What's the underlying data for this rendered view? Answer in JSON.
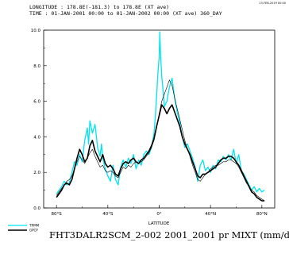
{
  "header": {
    "longitude_line": "LONGITUDE : 178.8E(-181.3) to 178.8E (XT ave)",
    "time_line": "TIME : 01-JAN-2001 00:00 to 01-JAN-2002 00:00 (XT ave) 360_DAY",
    "stamp": "13-FEB-2019 00:00"
  },
  "footer": {
    "title": "FHT3DALR2SCM_2-002 2001_2001 pr MIXT (mm/d)"
  },
  "chart_data": {
    "type": "line",
    "xlabel": "LATITUDE",
    "xlim": [
      -90,
      90
    ],
    "ylim": [
      0,
      10
    ],
    "y_ticks": [
      0,
      2,
      4,
      6,
      8,
      10
    ],
    "y_tick_labels": [
      "0.0",
      "2.0",
      "4.0",
      "6.0",
      "8.0",
      "10.0"
    ],
    "x_ticks": [
      -80,
      -40,
      0,
      40,
      80
    ],
    "x_tick_labels": [
      "80°S",
      "40°S",
      "0°",
      "40°N",
      "80°N"
    ],
    "legend_placement": "bottom-left",
    "series": [
      {
        "name": "TRMM",
        "color": "#00e5ee",
        "width": 1.3,
        "points": [
          [
            -80,
            0.8
          ],
          [
            -78,
            1.0
          ],
          [
            -76,
            1.2
          ],
          [
            -74,
            1.5
          ],
          [
            -72,
            1.3
          ],
          [
            -70,
            1.4
          ],
          [
            -68,
            2.0
          ],
          [
            -66,
            2.6
          ],
          [
            -64,
            2.4
          ],
          [
            -62,
            3.0
          ],
          [
            -60,
            2.6
          ],
          [
            -58,
            3.8
          ],
          [
            -56,
            4.5
          ],
          [
            -55,
            3.6
          ],
          [
            -54,
            4.9
          ],
          [
            -52,
            4.2
          ],
          [
            -50,
            4.7
          ],
          [
            -48,
            3.4
          ],
          [
            -46,
            2.9
          ],
          [
            -45,
            3.6
          ],
          [
            -44,
            2.8
          ],
          [
            -42,
            2.2
          ],
          [
            -40,
            1.8
          ],
          [
            -38,
            1.5
          ],
          [
            -36,
            2.4
          ],
          [
            -34,
            1.6
          ],
          [
            -32,
            1.3
          ],
          [
            -30,
            2.3
          ],
          [
            -28,
            2.7
          ],
          [
            -26,
            2.3
          ],
          [
            -24,
            2.8
          ],
          [
            -22,
            2.5
          ],
          [
            -20,
            3.0
          ],
          [
            -18,
            2.2
          ],
          [
            -16,
            2.7
          ],
          [
            -14,
            2.4
          ],
          [
            -12,
            3.0
          ],
          [
            -10,
            3.2
          ],
          [
            -8,
            3.0
          ],
          [
            -6,
            3.4
          ],
          [
            -4,
            4.2
          ],
          [
            -3,
            5.2
          ],
          [
            -2,
            6.3
          ],
          [
            -1,
            7.6
          ],
          [
            0,
            8.5
          ],
          [
            0.5,
            9.9
          ],
          [
            1,
            8.8
          ],
          [
            2,
            7.4
          ],
          [
            3,
            6.6
          ],
          [
            4,
            5.7
          ],
          [
            6,
            6.0
          ],
          [
            8,
            6.8
          ],
          [
            10,
            7.3
          ],
          [
            12,
            6.2
          ],
          [
            14,
            5.4
          ],
          [
            16,
            4.8
          ],
          [
            18,
            4.0
          ],
          [
            20,
            3.4
          ],
          [
            22,
            3.6
          ],
          [
            24,
            3.2
          ],
          [
            26,
            2.8
          ],
          [
            28,
            2.3
          ],
          [
            30,
            1.5
          ],
          [
            32,
            2.4
          ],
          [
            34,
            2.7
          ],
          [
            36,
            2.1
          ],
          [
            38,
            2.3
          ],
          [
            40,
            2.0
          ],
          [
            42,
            2.4
          ],
          [
            44,
            2.2
          ],
          [
            46,
            2.7
          ],
          [
            48,
            2.6
          ],
          [
            50,
            2.9
          ],
          [
            52,
            2.7
          ],
          [
            54,
            3.0
          ],
          [
            56,
            2.7
          ],
          [
            58,
            3.3
          ],
          [
            60,
            2.5
          ],
          [
            62,
            3.0
          ],
          [
            64,
            2.1
          ],
          [
            66,
            1.9
          ],
          [
            68,
            1.6
          ],
          [
            70,
            1.3
          ],
          [
            72,
            1.0
          ],
          [
            74,
            1.2
          ],
          [
            76,
            0.9
          ],
          [
            78,
            1.1
          ],
          [
            80,
            0.9
          ],
          [
            82,
            1.0
          ]
        ]
      },
      {
        "name": "GPCP",
        "color": "#000000",
        "width": 1.6,
        "points": [
          [
            -80,
            0.6
          ],
          [
            -78,
            0.8
          ],
          [
            -76,
            1.0
          ],
          [
            -74,
            1.3
          ],
          [
            -72,
            1.4
          ],
          [
            -70,
            1.3
          ],
          [
            -68,
            1.6
          ],
          [
            -66,
            2.2
          ],
          [
            -64,
            2.8
          ],
          [
            -62,
            3.3
          ],
          [
            -60,
            3.0
          ],
          [
            -58,
            2.6
          ],
          [
            -56,
            2.8
          ],
          [
            -54,
            3.5
          ],
          [
            -52,
            3.8
          ],
          [
            -50,
            3.2
          ],
          [
            -48,
            2.9
          ],
          [
            -46,
            2.6
          ],
          [
            -44,
            3.0
          ],
          [
            -42,
            2.5
          ],
          [
            -40,
            2.3
          ],
          [
            -38,
            2.4
          ],
          [
            -36,
            2.2
          ],
          [
            -34,
            1.9
          ],
          [
            -32,
            1.8
          ],
          [
            -30,
            2.2
          ],
          [
            -28,
            2.5
          ],
          [
            -26,
            2.6
          ],
          [
            -24,
            2.5
          ],
          [
            -22,
            2.7
          ],
          [
            -20,
            2.8
          ],
          [
            -18,
            2.6
          ],
          [
            -16,
            2.5
          ],
          [
            -14,
            2.7
          ],
          [
            -12,
            2.8
          ],
          [
            -10,
            3.0
          ],
          [
            -8,
            3.2
          ],
          [
            -6,
            3.5
          ],
          [
            -4,
            3.9
          ],
          [
            -2,
            4.6
          ],
          [
            0,
            5.2
          ],
          [
            2,
            5.8
          ],
          [
            4,
            5.6
          ],
          [
            6,
            5.3
          ],
          [
            8,
            5.6
          ],
          [
            10,
            5.8
          ],
          [
            12,
            5.4
          ],
          [
            14,
            5.0
          ],
          [
            16,
            4.6
          ],
          [
            18,
            4.0
          ],
          [
            20,
            3.6
          ],
          [
            22,
            3.3
          ],
          [
            24,
            3.0
          ],
          [
            26,
            2.6
          ],
          [
            28,
            2.2
          ],
          [
            30,
            1.8
          ],
          [
            32,
            1.7
          ],
          [
            34,
            1.9
          ],
          [
            36,
            1.9
          ],
          [
            38,
            2.0
          ],
          [
            40,
            2.1
          ],
          [
            42,
            2.2
          ],
          [
            44,
            2.3
          ],
          [
            46,
            2.5
          ],
          [
            48,
            2.7
          ],
          [
            50,
            2.8
          ],
          [
            52,
            2.8
          ],
          [
            54,
            2.9
          ],
          [
            56,
            2.9
          ],
          [
            58,
            2.8
          ],
          [
            60,
            2.6
          ],
          [
            62,
            2.4
          ],
          [
            64,
            2.1
          ],
          [
            66,
            1.8
          ],
          [
            68,
            1.5
          ],
          [
            70,
            1.2
          ],
          [
            72,
            0.9
          ],
          [
            74,
            0.8
          ],
          [
            76,
            0.6
          ],
          [
            78,
            0.5
          ],
          [
            80,
            0.4
          ],
          [
            82,
            0.4
          ]
        ]
      },
      {
        "name": "",
        "color": "#000000",
        "width": 0.6,
        "points": [
          [
            -80,
            0.7
          ],
          [
            -78,
            0.9
          ],
          [
            -76,
            1.1
          ],
          [
            -74,
            1.3
          ],
          [
            -72,
            1.5
          ],
          [
            -70,
            1.6
          ],
          [
            -68,
            1.8
          ],
          [
            -66,
            2.2
          ],
          [
            -64,
            2.6
          ],
          [
            -62,
            2.9
          ],
          [
            -60,
            2.7
          ],
          [
            -58,
            2.5
          ],
          [
            -56,
            2.8
          ],
          [
            -54,
            3.1
          ],
          [
            -52,
            3.3
          ],
          [
            -50,
            2.9
          ],
          [
            -48,
            2.6
          ],
          [
            -46,
            2.3
          ],
          [
            -44,
            2.4
          ],
          [
            -42,
            2.1
          ],
          [
            -40,
            2.0
          ],
          [
            -38,
            2.1
          ],
          [
            -36,
            2.0
          ],
          [
            -34,
            1.8
          ],
          [
            -32,
            1.7
          ],
          [
            -30,
            2.0
          ],
          [
            -28,
            2.3
          ],
          [
            -26,
            2.2
          ],
          [
            -24,
            2.4
          ],
          [
            -22,
            2.3
          ],
          [
            -20,
            2.5
          ],
          [
            -18,
            2.6
          ],
          [
            -16,
            2.5
          ],
          [
            -14,
            2.6
          ],
          [
            -12,
            2.7
          ],
          [
            -10,
            2.9
          ],
          [
            -8,
            3.1
          ],
          [
            -6,
            3.4
          ],
          [
            -4,
            3.8
          ],
          [
            -2,
            4.5
          ],
          [
            0,
            5.3
          ],
          [
            2,
            6.0
          ],
          [
            4,
            6.4
          ],
          [
            6,
            6.8
          ],
          [
            8,
            7.2
          ],
          [
            10,
            6.9
          ],
          [
            12,
            6.2
          ],
          [
            14,
            5.6
          ],
          [
            16,
            5.0
          ],
          [
            18,
            4.4
          ],
          [
            20,
            3.8
          ],
          [
            22,
            3.3
          ],
          [
            24,
            2.9
          ],
          [
            26,
            2.4
          ],
          [
            28,
            2.0
          ],
          [
            30,
            1.6
          ],
          [
            32,
            1.5
          ],
          [
            34,
            1.7
          ],
          [
            36,
            1.9
          ],
          [
            38,
            2.0
          ],
          [
            40,
            2.2
          ],
          [
            42,
            2.3
          ],
          [
            44,
            2.4
          ],
          [
            46,
            2.4
          ],
          [
            48,
            2.5
          ],
          [
            50,
            2.6
          ],
          [
            52,
            2.6
          ],
          [
            54,
            2.7
          ],
          [
            56,
            2.7
          ],
          [
            58,
            2.6
          ],
          [
            60,
            2.5
          ],
          [
            62,
            2.3
          ],
          [
            64,
            2.0
          ],
          [
            66,
            1.7
          ],
          [
            68,
            1.4
          ],
          [
            70,
            1.2
          ],
          [
            72,
            1.0
          ],
          [
            74,
            0.9
          ],
          [
            76,
            0.7
          ],
          [
            78,
            0.6
          ],
          [
            80,
            0.5
          ],
          [
            82,
            0.4
          ]
        ]
      }
    ]
  }
}
